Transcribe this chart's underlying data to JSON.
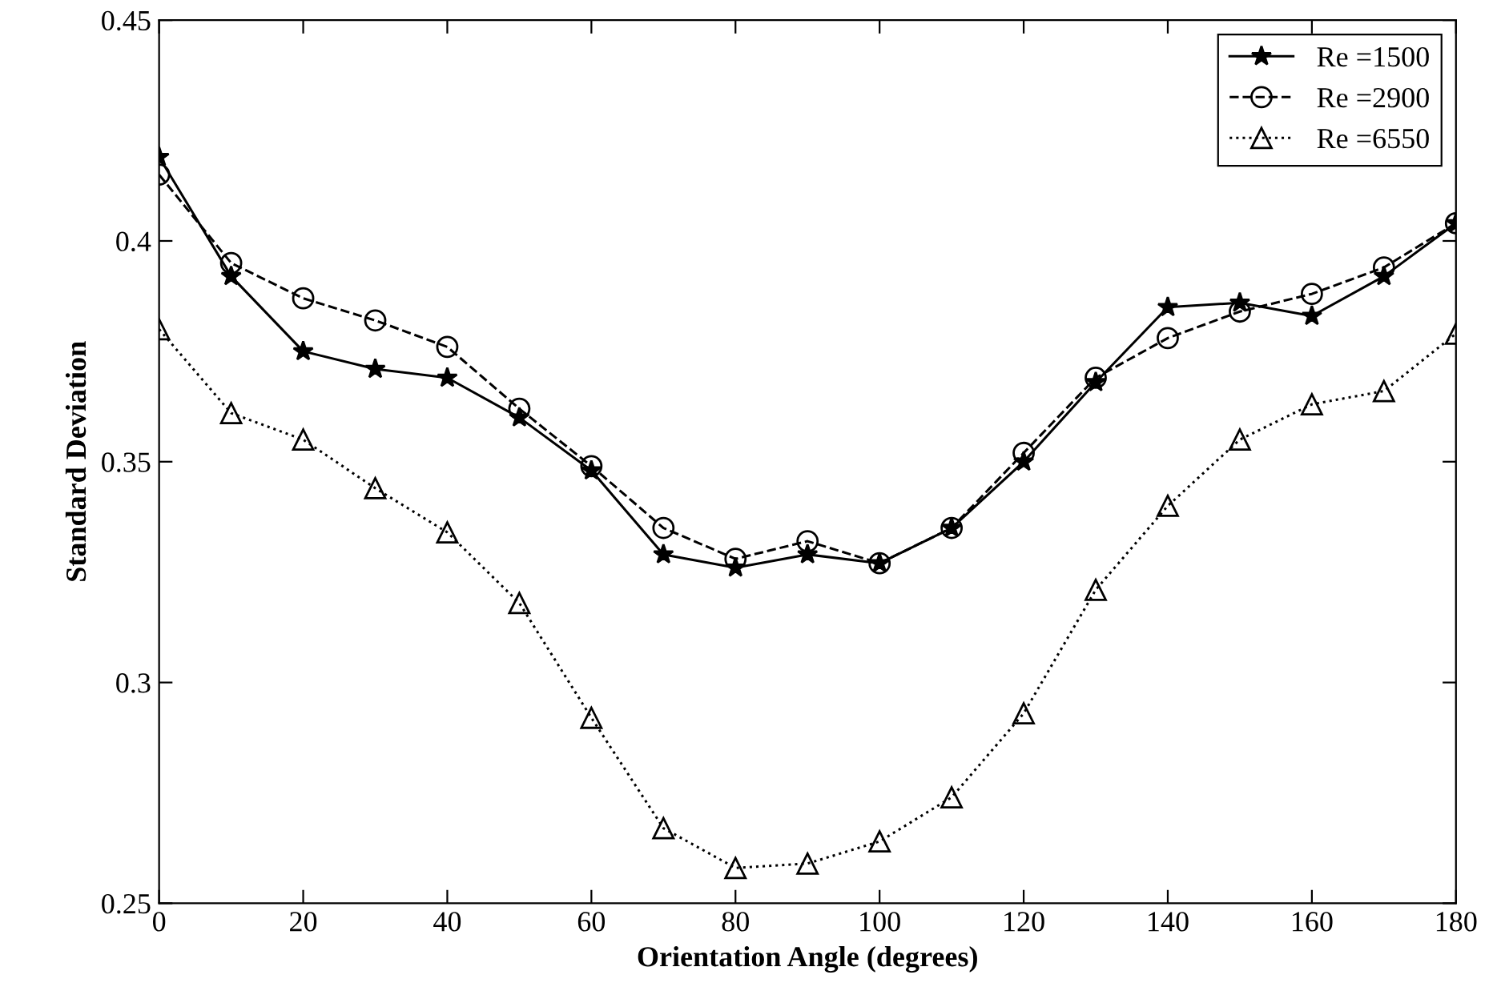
{
  "chart_data": {
    "type": "line",
    "xlabel": "Orientation Angle (degrees)",
    "ylabel": "Standard Deviation",
    "x": [
      0,
      10,
      20,
      30,
      40,
      50,
      60,
      70,
      80,
      90,
      100,
      110,
      120,
      130,
      140,
      150,
      160,
      170,
      180
    ],
    "series": [
      {
        "name": "Re =1500",
        "color": "#000000",
        "marker": "star",
        "line_style": "solid",
        "values": [
          0.419,
          0.392,
          0.375,
          0.371,
          0.369,
          0.36,
          0.348,
          0.329,
          0.326,
          0.329,
          0.327,
          0.335,
          0.35,
          0.368,
          0.385,
          0.386,
          0.383,
          0.392,
          0.404
        ]
      },
      {
        "name": "Re =2900",
        "color": "#000000",
        "marker": "circle",
        "line_style": "dashed",
        "values": [
          0.415,
          0.395,
          0.387,
          0.382,
          0.376,
          0.362,
          0.349,
          0.335,
          0.328,
          0.332,
          0.327,
          0.335,
          0.352,
          0.369,
          0.378,
          0.384,
          0.388,
          0.394,
          0.404
        ]
      },
      {
        "name": "Re =6550",
        "color": "#000000",
        "marker": "triangle",
        "line_style": "dotted",
        "values": [
          0.38,
          0.361,
          0.355,
          0.344,
          0.334,
          0.318,
          0.292,
          0.267,
          0.258,
          0.259,
          0.264,
          0.274,
          0.293,
          0.321,
          0.34,
          0.355,
          0.363,
          0.366,
          0.379
        ]
      }
    ],
    "xlim": [
      0,
      180
    ],
    "xticks": [
      0,
      20,
      40,
      60,
      80,
      100,
      120,
      140,
      160,
      180
    ],
    "ylim": [
      0.25,
      0.45
    ],
    "yticks": [
      0.25,
      0.3,
      0.35,
      0.4,
      0.45
    ],
    "grid": false,
    "legend": "top right"
  }
}
